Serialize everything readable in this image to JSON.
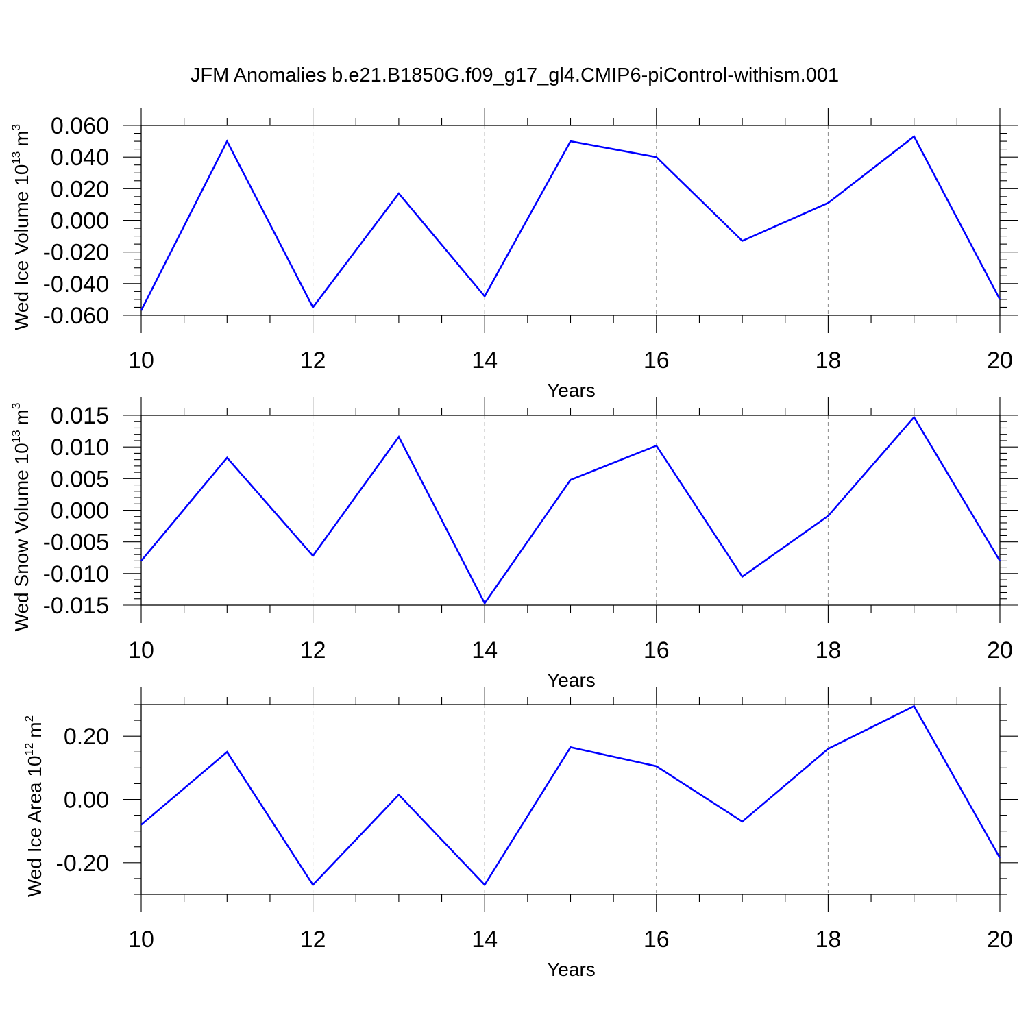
{
  "figure": {
    "title": "JFM Anomalies b.e21.B1850G.f09_g17_gl4.CMIP6-piControl-withism.001"
  },
  "colors": {
    "series": "#0000ff",
    "grid": "#888888"
  },
  "chart_data": [
    {
      "type": "line",
      "title": "",
      "xlabel": "Years",
      "ylabel": {
        "main": "Wed Ice Volume 10",
        "exp": "13",
        "unit": "m",
        "unit_exp": "3"
      },
      "xlim": [
        10,
        20
      ],
      "ylim": [
        -0.06,
        0.06
      ],
      "x_ticks": [
        10,
        12,
        14,
        16,
        18,
        20
      ],
      "x_tick_labels": [
        "10",
        "12",
        "14",
        "16",
        "18",
        "20"
      ],
      "y_ticks": [
        -0.06,
        -0.04,
        -0.02,
        0,
        0.02,
        0.04,
        0.06
      ],
      "y_tick_labels": [
        "-0.060",
        "-0.040",
        "-0.020",
        "0.000",
        "0.020",
        "0.040",
        "0.060"
      ],
      "y_minor_step": 0.005,
      "grid": "vertical-dashed",
      "x": [
        10,
        11,
        12,
        13,
        14,
        15,
        16,
        17,
        18,
        19,
        20
      ],
      "series": [
        {
          "values": [
            -0.057,
            0.05,
            -0.055,
            0.017,
            -0.048,
            0.05,
            0.04,
            -0.013,
            0.011,
            0.053,
            -0.05
          ]
        }
      ]
    },
    {
      "type": "line",
      "title": "",
      "xlabel": "Years",
      "ylabel": {
        "main": "Wed Snow Volume 10",
        "exp": "13",
        "unit": "m",
        "unit_exp": "3"
      },
      "xlim": [
        10,
        20
      ],
      "ylim": [
        -0.015,
        0.015
      ],
      "x_ticks": [
        10,
        12,
        14,
        16,
        18,
        20
      ],
      "x_tick_labels": [
        "10",
        "12",
        "14",
        "16",
        "18",
        "20"
      ],
      "y_ticks": [
        -0.015,
        -0.01,
        -0.005,
        0,
        0.005,
        0.01,
        0.015
      ],
      "y_tick_labels": [
        "-0.015",
        "-0.010",
        "-0.005",
        "0.000",
        "0.005",
        "0.010",
        "0.015"
      ],
      "y_minor_step": 0.001,
      "grid": "vertical-dashed",
      "x": [
        10,
        11,
        12,
        13,
        14,
        15,
        16,
        17,
        18,
        19,
        20
      ],
      "series": [
        {
          "values": [
            -0.008,
            0.0083,
            -0.0072,
            0.0116,
            -0.0147,
            0.0048,
            0.0102,
            -0.0105,
            -0.0009,
            0.0147,
            -0.008
          ]
        }
      ]
    },
    {
      "type": "line",
      "title": "",
      "xlabel": "Years",
      "ylabel": {
        "main": "Wed Ice Area 10",
        "exp": "12",
        "unit": "m",
        "unit_exp": "2"
      },
      "xlim": [
        10,
        20
      ],
      "ylim": [
        -0.3,
        0.3
      ],
      "x_ticks": [
        10,
        12,
        14,
        16,
        18,
        20
      ],
      "x_tick_labels": [
        "10",
        "12",
        "14",
        "16",
        "18",
        "20"
      ],
      "y_ticks": [
        -0.2,
        0,
        0.2
      ],
      "y_tick_labels": [
        "-0.20",
        "0.00",
        "0.20"
      ],
      "y_minor_step": 0.05,
      "grid": "vertical-dashed",
      "x": [
        10,
        11,
        12,
        13,
        14,
        15,
        16,
        17,
        18,
        19,
        20
      ],
      "series": [
        {
          "values": [
            -0.08,
            0.15,
            -0.27,
            0.015,
            -0.27,
            0.165,
            0.105,
            -0.07,
            0.16,
            0.295,
            -0.185
          ]
        }
      ]
    }
  ]
}
